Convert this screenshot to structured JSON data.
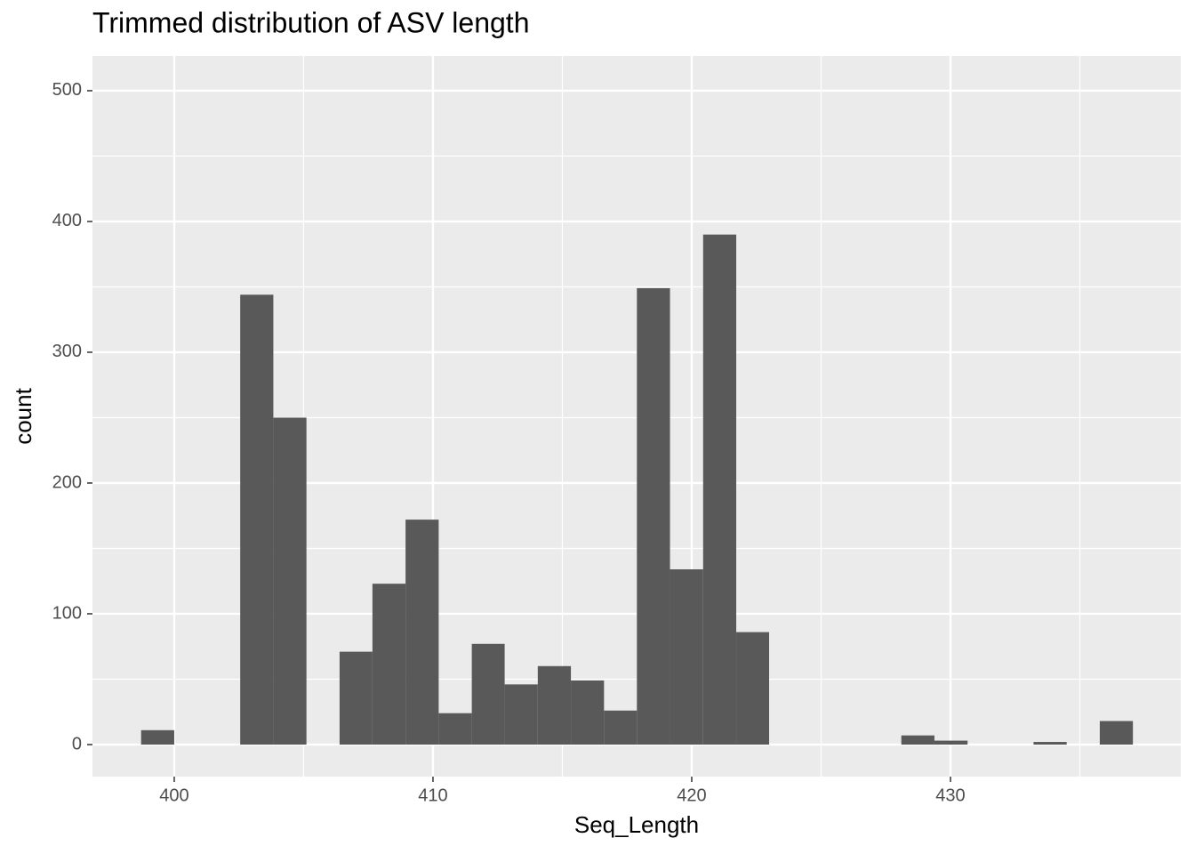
{
  "chart_data": {
    "type": "histogram",
    "title": "Trimmed distribution of ASV length",
    "x_label": "Seq_Length",
    "y_label": "count",
    "bins": [
      398.72,
      400.0,
      401.28,
      402.55,
      403.83,
      405.11,
      406.39,
      407.66,
      408.94,
      410.22,
      411.5,
      412.77,
      414.05,
      415.33,
      416.61,
      417.88,
      419.16,
      420.44,
      421.72,
      422.99,
      424.27,
      425.55,
      426.83,
      428.1,
      429.38,
      430.66,
      431.94,
      433.21,
      434.49,
      435.77,
      437.05
    ],
    "values": [
      11,
      0,
      0,
      344,
      250,
      0,
      71,
      123,
      172,
      24,
      77,
      46,
      60,
      49,
      26,
      349,
      134,
      390,
      86,
      0,
      0,
      0,
      0,
      7,
      3,
      0,
      0,
      2,
      0,
      18
    ],
    "color": "#595959",
    "xlim": [
      396.84,
      438.9
    ],
    "xticks": [
      400,
      410,
      420,
      430
    ],
    "xticks_minor": [
      405,
      415,
      425,
      435
    ],
    "ylim": [
      -24.5,
      526.5
    ],
    "yticks": [
      0,
      100,
      200,
      300,
      400,
      500
    ],
    "yticks_minor": [
      50,
      150,
      250,
      350,
      450
    ],
    "grid": true
  }
}
